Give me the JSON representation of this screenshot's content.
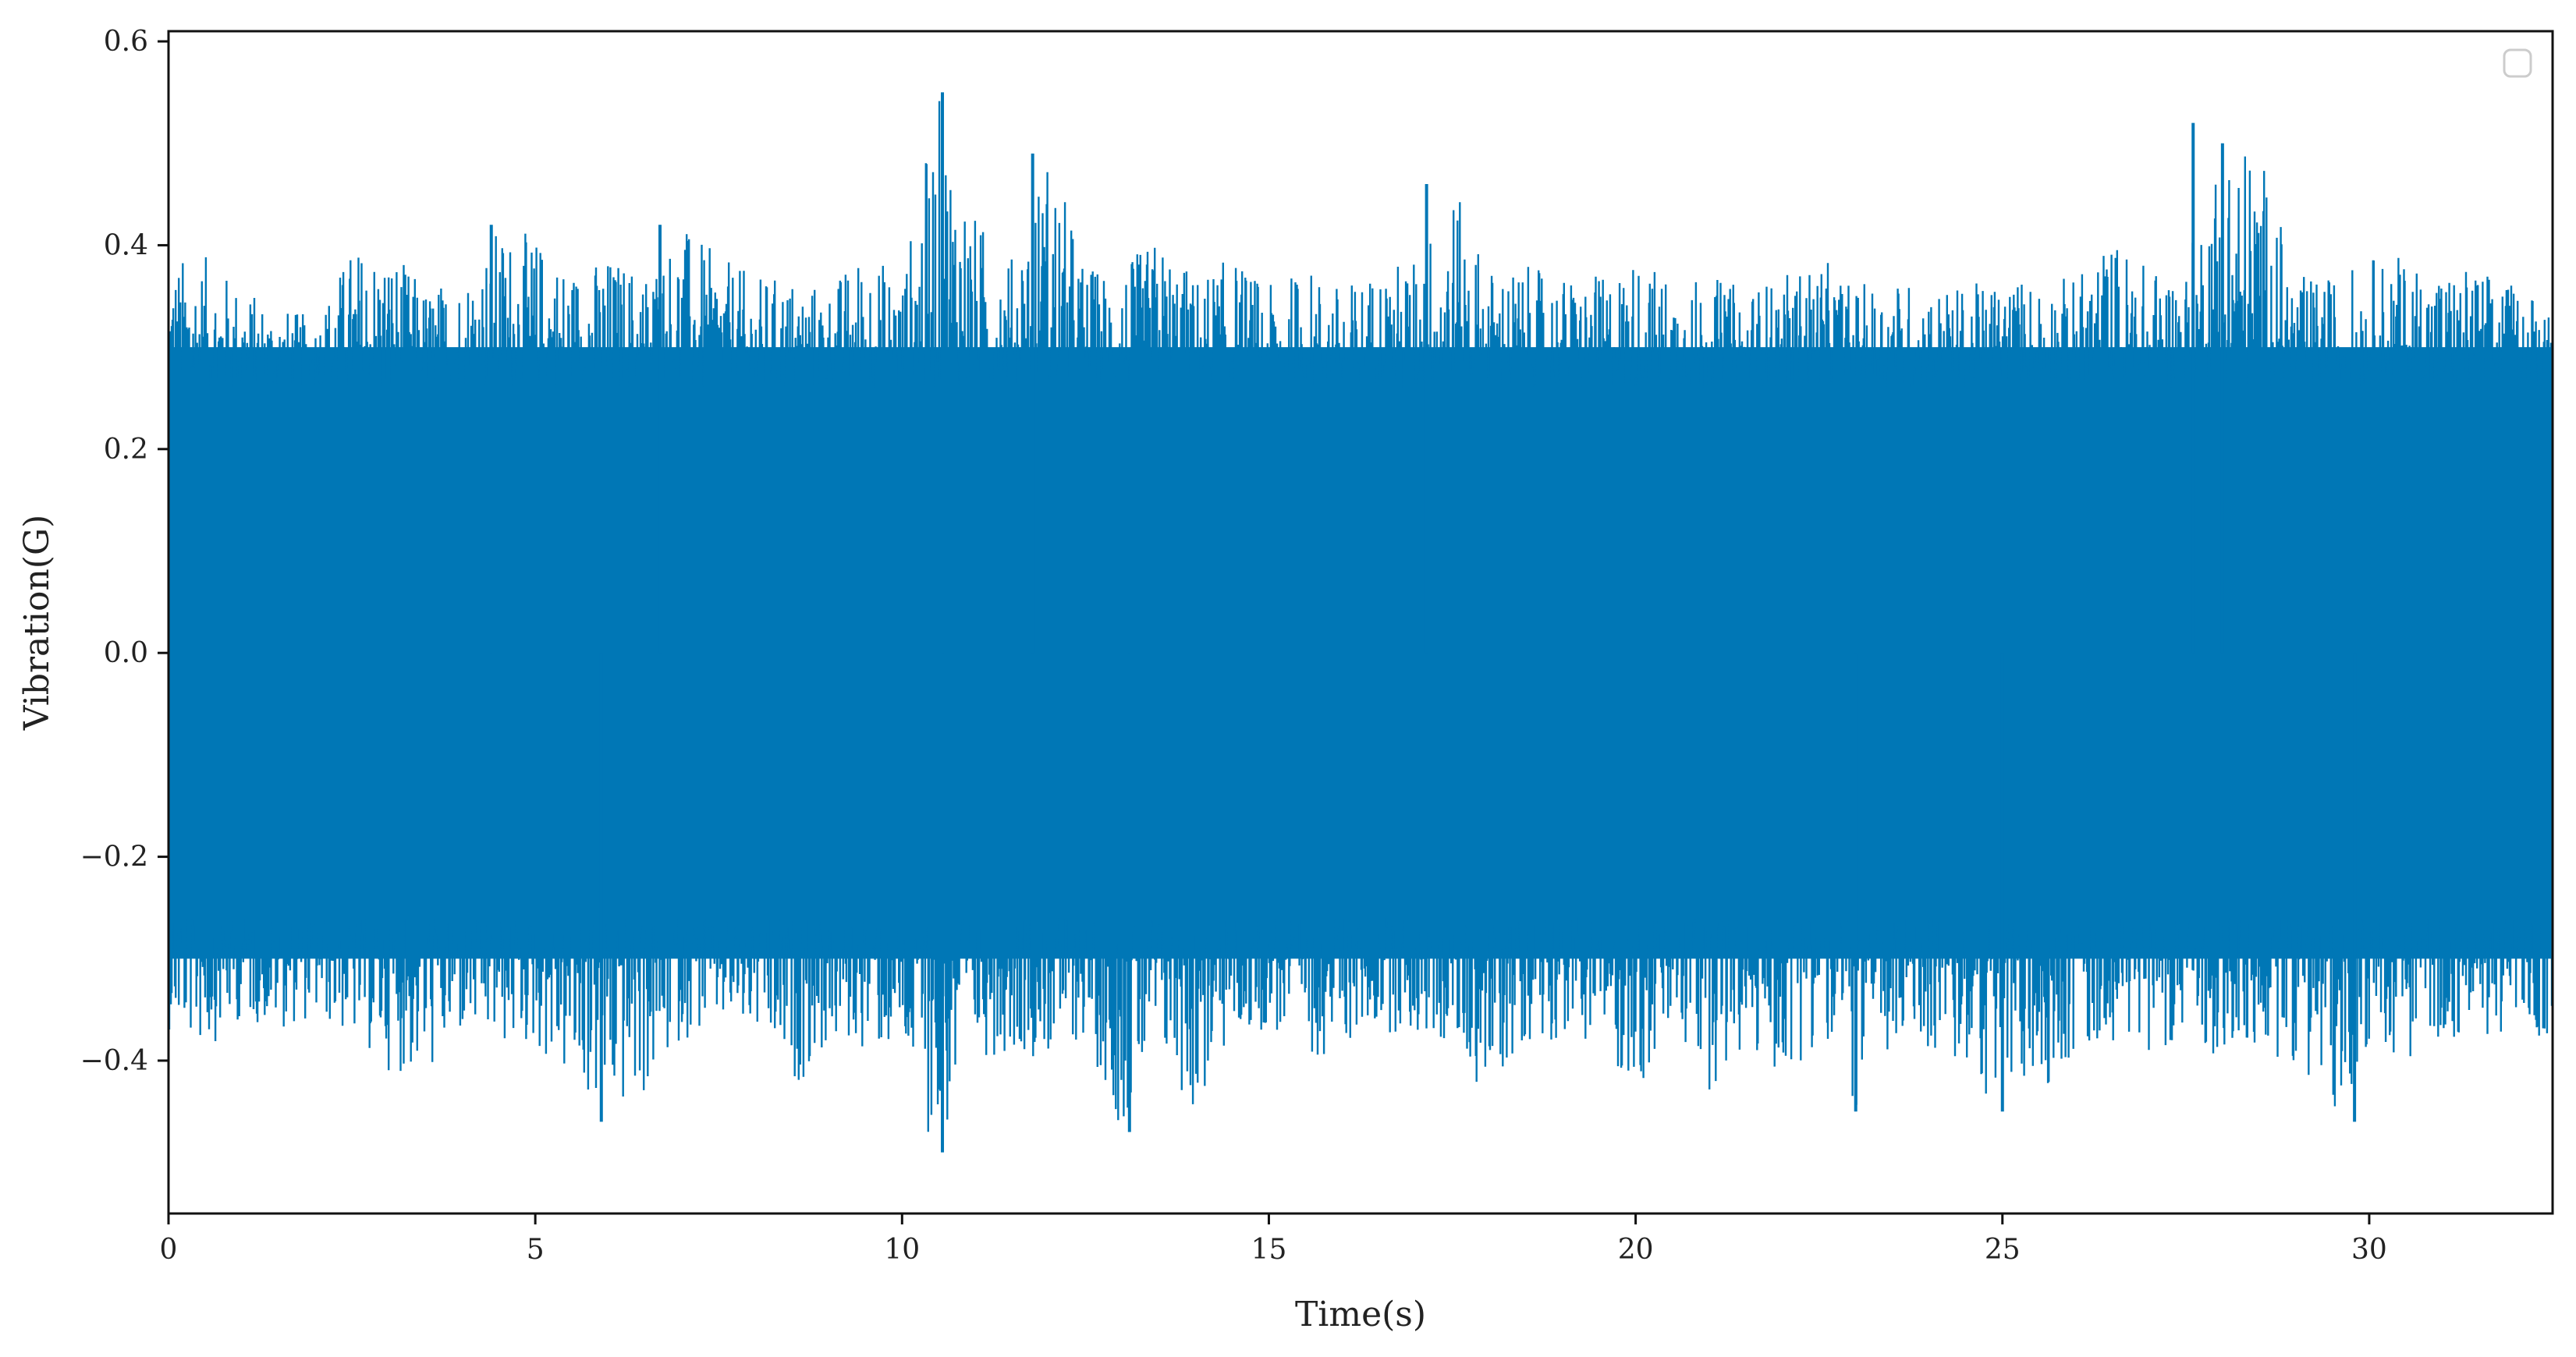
{
  "chart_data": {
    "type": "line",
    "title": "",
    "xlabel": "Time(s)",
    "ylabel": "Vibration(G)",
    "xlim": [
      0,
      32.5
    ],
    "ylim": [
      -0.55,
      0.61
    ],
    "xticks": [
      0,
      5,
      10,
      15,
      20,
      25,
      30
    ],
    "xtick_labels": [
      "0",
      "5",
      "10",
      "15",
      "20",
      "25",
      "30"
    ],
    "yticks": [
      0.6,
      0.4,
      0.2,
      0.0,
      -0.2,
      -0.4
    ],
    "ytick_labels": [
      "0.6",
      "0.4",
      "0.2",
      "0.0",
      "−0.2",
      "−0.4"
    ],
    "grid": false,
    "legend": {
      "placement": "upper-right",
      "entries": []
    },
    "series": [
      {
        "color": "#0077b6",
        "description_of_signal": null,
        "envelope": {
          "x": [
            0.0,
            0.5,
            1.0,
            1.5,
            2.0,
            2.5,
            3.0,
            3.5,
            4.0,
            4.5,
            5.0,
            5.5,
            6.0,
            6.5,
            7.0,
            7.5,
            8.0,
            8.5,
            9.0,
            9.5,
            10.0,
            10.5,
            11.0,
            11.5,
            12.0,
            12.5,
            13.0,
            13.5,
            14.0,
            14.5,
            15.0,
            15.5,
            16.0,
            16.5,
            17.0,
            17.5,
            18.0,
            18.5,
            19.0,
            19.5,
            20.0,
            20.5,
            21.0,
            21.5,
            22.0,
            22.5,
            23.0,
            23.5,
            24.0,
            24.5,
            25.0,
            25.5,
            26.0,
            26.5,
            27.0,
            27.5,
            28.0,
            28.5,
            29.0,
            29.5,
            30.0,
            30.5,
            31.0,
            31.5,
            32.0,
            32.5
          ],
          "upper": [
            0.39,
            0.39,
            0.36,
            0.34,
            0.33,
            0.4,
            0.4,
            0.36,
            0.37,
            0.42,
            0.41,
            0.38,
            0.39,
            0.38,
            0.42,
            0.39,
            0.37,
            0.37,
            0.36,
            0.4,
            0.37,
            0.55,
            0.43,
            0.39,
            0.5,
            0.38,
            0.38,
            0.41,
            0.37,
            0.39,
            0.36,
            0.38,
            0.36,
            0.38,
            0.39,
            0.46,
            0.38,
            0.38,
            0.37,
            0.37,
            0.39,
            0.37,
            0.37,
            0.36,
            0.37,
            0.39,
            0.36,
            0.37,
            0.36,
            0.36,
            0.37,
            0.37,
            0.37,
            0.41,
            0.38,
            0.38,
            0.52,
            0.5,
            0.37,
            0.37,
            0.39,
            0.39,
            0.38,
            0.38,
            0.36,
            0.36
          ],
          "lower": [
            -0.37,
            -0.39,
            -0.36,
            -0.37,
            -0.36,
            -0.38,
            -0.41,
            -0.42,
            -0.38,
            -0.39,
            -0.39,
            -0.43,
            -0.46,
            -0.44,
            -0.38,
            -0.37,
            -0.38,
            -0.43,
            -0.39,
            -0.39,
            -0.4,
            -0.5,
            -0.4,
            -0.39,
            -0.4,
            -0.38,
            -0.47,
            -0.4,
            -0.46,
            -0.38,
            -0.37,
            -0.4,
            -0.39,
            -0.37,
            -0.38,
            -0.39,
            -0.44,
            -0.38,
            -0.38,
            -0.38,
            -0.44,
            -0.38,
            -0.43,
            -0.4,
            -0.42,
            -0.38,
            -0.45,
            -0.4,
            -0.39,
            -0.42,
            -0.45,
            -0.43,
            -0.4,
            -0.38,
            -0.39,
            -0.38,
            -0.4,
            -0.4,
            -0.4,
            -0.46,
            -0.39,
            -0.4,
            -0.38,
            -0.38,
            -0.37,
            -0.39
          ]
        },
        "dense_band": [
          -0.3,
          0.3
        ],
        "spikes": [
          {
            "x": 10.55,
            "y": 0.55
          },
          {
            "x": 10.55,
            "y": -0.49
          },
          {
            "x": 11.78,
            "y": 0.49
          },
          {
            "x": 13.1,
            "y": -0.47
          },
          {
            "x": 17.15,
            "y": 0.46
          },
          {
            "x": 27.6,
            "y": 0.52
          },
          {
            "x": 28.0,
            "y": 0.5
          },
          {
            "x": 29.8,
            "y": -0.46
          },
          {
            "x": 5.9,
            "y": -0.46
          },
          {
            "x": 4.4,
            "y": 0.42
          },
          {
            "x": 6.7,
            "y": 0.42
          },
          {
            "x": 23.0,
            "y": -0.45
          },
          {
            "x": 25.0,
            "y": -0.45
          }
        ]
      }
    ]
  }
}
